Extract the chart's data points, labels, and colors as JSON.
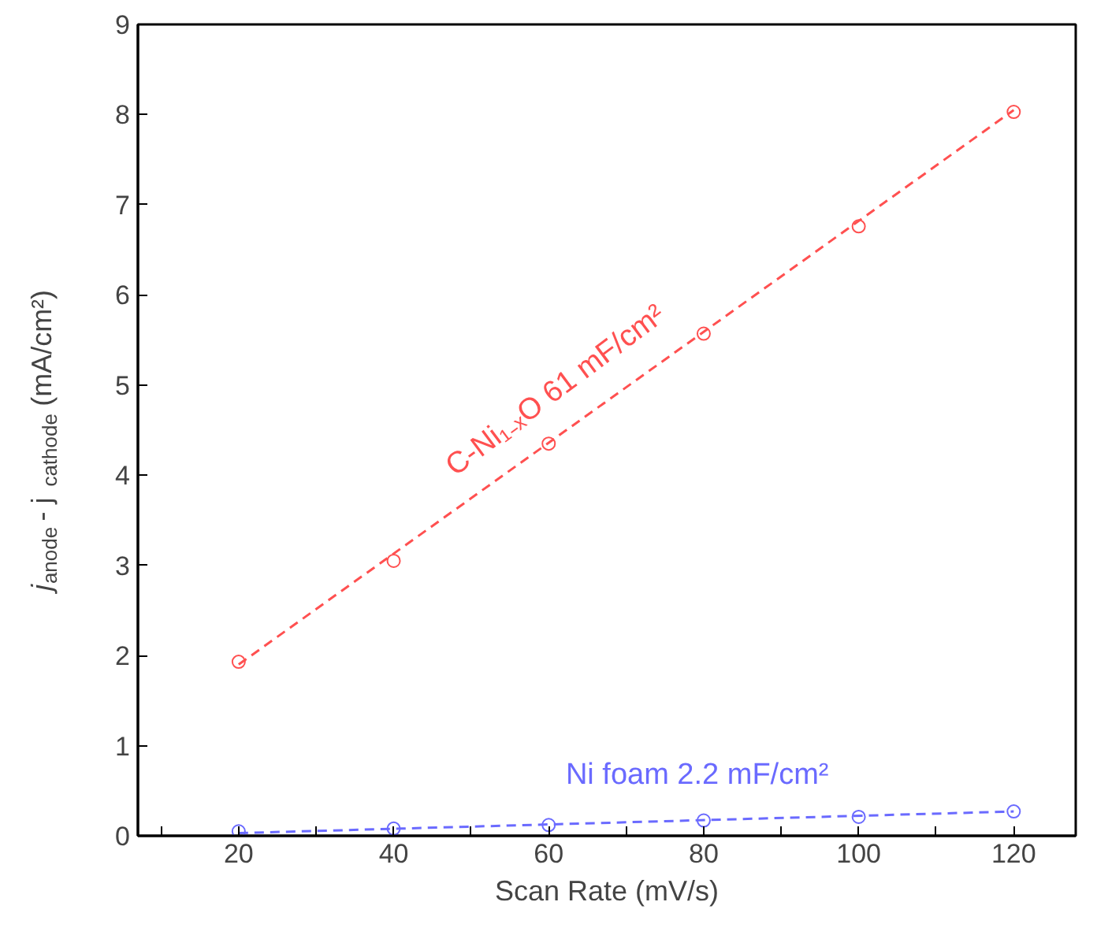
{
  "chart_data": {
    "type": "scatter",
    "xlabel": "Scan Rate (mV/s)",
    "ylabel": "j$_{anode}$ - j$_{cathode}$ (mA/cm²)",
    "xlim": [
      7,
      128
    ],
    "xticks": [
      {
        "value": 10,
        "label": null
      },
      20,
      {
        "value": 30,
        "label": null
      },
      40,
      {
        "value": 50,
        "label": null
      },
      60,
      {
        "value": 70,
        "label": null
      },
      80,
      {
        "value": 90,
        "label": null
      },
      100,
      {
        "value": 110,
        "label": null
      },
      120
    ],
    "ylim": [
      0,
      9
    ],
    "yticks": [
      0,
      1,
      2,
      3,
      4,
      5,
      6,
      7,
      8,
      9
    ],
    "grid": false,
    "marker": "circle",
    "series": [
      {
        "color": "#ff5050",
        "x": [
          20,
          40,
          60,
          80,
          100,
          120
        ],
        "values": [
          1.93,
          3.05,
          4.35,
          5.57,
          6.76,
          8.03
        ]
      },
      {
        "type": "line",
        "color": "#ff5050",
        "line_style": "dashed",
        "marker": "none",
        "x": [
          20,
          120
        ],
        "values": [
          1.9,
          8.05
        ]
      },
      {
        "color": "#6a6aff",
        "x": [
          20,
          40,
          60,
          80,
          100,
          120
        ],
        "values": [
          0.05,
          0.08,
          0.12,
          0.17,
          0.21,
          0.27
        ]
      },
      {
        "type": "line",
        "color": "#6a6aff",
        "line_style": "dashed",
        "marker": "none",
        "x": [
          20,
          120
        ],
        "values": [
          0.03,
          0.27
        ]
      }
    ],
    "annotations": [
      "C-Ni₁₋ₓO    61 mF/cm²",
      "Ni foam    2.2 mF/cm²"
    ]
  }
}
